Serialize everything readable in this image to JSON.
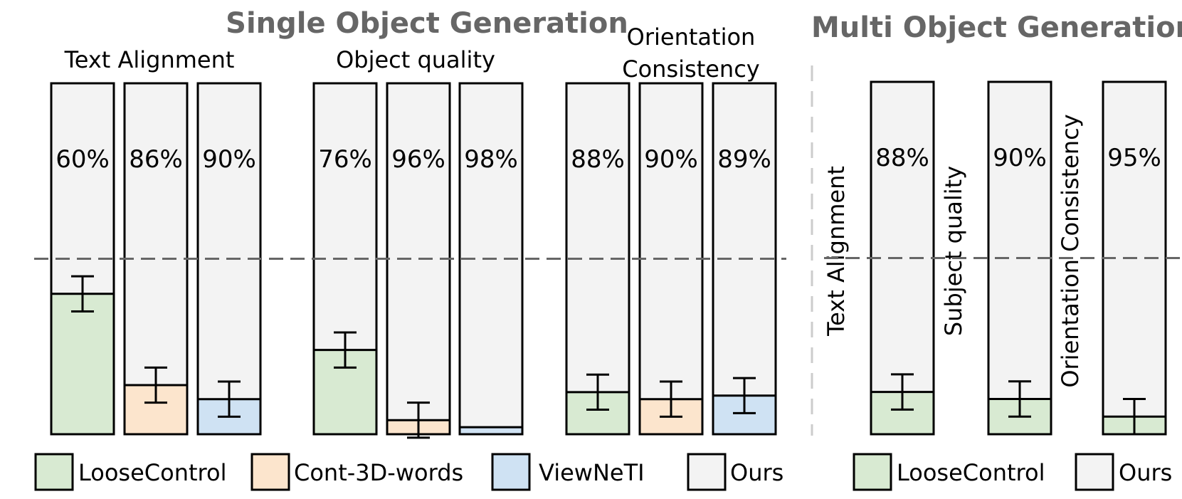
{
  "chart_data": {
    "type": "bar",
    "stacked": true,
    "threshold_line": 50,
    "ylim": [
      0,
      100
    ],
    "colors": {
      "LooseControl": "#d8ead2",
      "Cont-3D-words": "#fce5cd",
      "ViewNeTI": "#cfe2f3",
      "Ours": "#f3f3f3",
      "edge": "#000000",
      "dash": "#666666",
      "divider": "#cccccc"
    },
    "panels": [
      {
        "title": "Single Object Generation",
        "groups": [
          {
            "label": "Text Alignment",
            "bars": [
              {
                "baseline": "LooseControl",
                "ours": 60,
                "baseline_value": 40,
                "error": 5
              },
              {
                "baseline": "Cont-3D-words",
                "ours": 86,
                "baseline_value": 14,
                "error": 5
              },
              {
                "baseline": "ViewNeTI",
                "ours": 90,
                "baseline_value": 10,
                "error": 5
              }
            ]
          },
          {
            "label": "Object quality",
            "bars": [
              {
                "baseline": "LooseControl",
                "ours": 76,
                "baseline_value": 24,
                "error": 5
              },
              {
                "baseline": "Cont-3D-words",
                "ours": 96,
                "baseline_value": 4,
                "error": 5
              },
              {
                "baseline": "ViewNeTI",
                "ours": 98,
                "baseline_value": 2,
                "error": 0
              }
            ]
          },
          {
            "label": "Orientation Consistency",
            "bars": [
              {
                "baseline": "LooseControl",
                "ours": 88,
                "baseline_value": 12,
                "error": 5
              },
              {
                "baseline": "Cont-3D-words",
                "ours": 90,
                "baseline_value": 10,
                "error": 5
              },
              {
                "baseline": "ViewNeTI",
                "ours": 89,
                "baseline_value": 11,
                "error": 5
              }
            ]
          }
        ],
        "legend": [
          "LooseControl",
          "Cont-3D-words",
          "ViewNeTI",
          "Ours"
        ]
      },
      {
        "title": "Multi Object Generation",
        "groups": [
          {
            "label": "Text Alignment",
            "bars": [
              {
                "baseline": "LooseControl",
                "ours": 88,
                "baseline_value": 12,
                "error": 5
              }
            ]
          },
          {
            "label": "Subject quality",
            "bars": [
              {
                "baseline": "LooseControl",
                "ours": 90,
                "baseline_value": 10,
                "error": 5
              }
            ]
          },
          {
            "label": "Orientation Consistency",
            "bars": [
              {
                "baseline": "LooseControl",
                "ours": 95,
                "baseline_value": 5,
                "error": 5
              }
            ]
          }
        ],
        "legend": [
          "LooseControl",
          "Ours"
        ]
      }
    ]
  }
}
